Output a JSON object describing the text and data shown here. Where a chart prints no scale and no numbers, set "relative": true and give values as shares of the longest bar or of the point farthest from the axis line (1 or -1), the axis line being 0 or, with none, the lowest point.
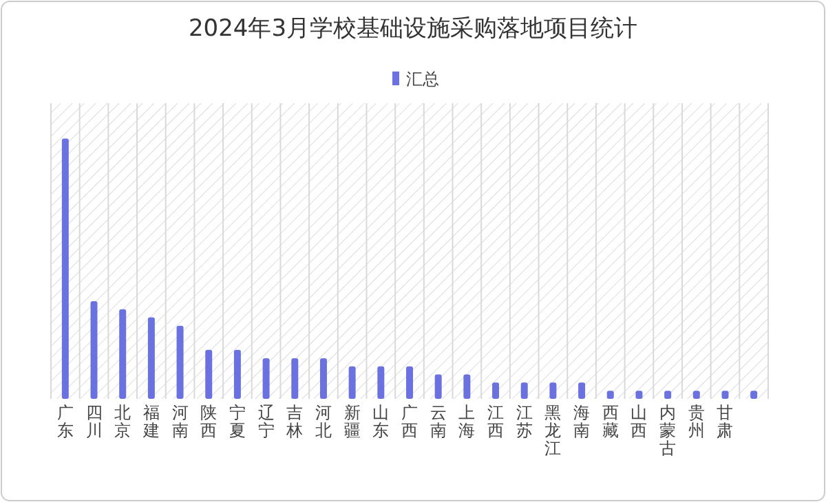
{
  "chart_data": {
    "type": "bar",
    "title": "2024年3月学校基础设施采购落地项目统计",
    "relative": true,
    "grid": "x",
    "legend": "top",
    "categories": [
      "广东",
      "四川",
      "北京",
      "福建",
      "河南",
      "陕西",
      "宁夏",
      "辽宁",
      "吉林",
      "河北",
      "新疆",
      "山东",
      "广西",
      "云南",
      "上海",
      "江西",
      "江苏",
      "黑龙江",
      "海南",
      "西藏",
      "山西",
      "内蒙古",
      "贵州",
      "甘肃",
      null
    ],
    "series": [
      {
        "name": "汇总",
        "color": "#6b72e0",
        "values": [
          1,
          0.375,
          0.344,
          0.313,
          0.281,
          0.188,
          0.188,
          0.156,
          0.156,
          0.156,
          0.125,
          0.125,
          0.125,
          0.094,
          0.094,
          0.063,
          0.063,
          0.063,
          0.063,
          0.031,
          0.031,
          0.031,
          0.031,
          0.031,
          0.031
        ]
      }
    ]
  }
}
